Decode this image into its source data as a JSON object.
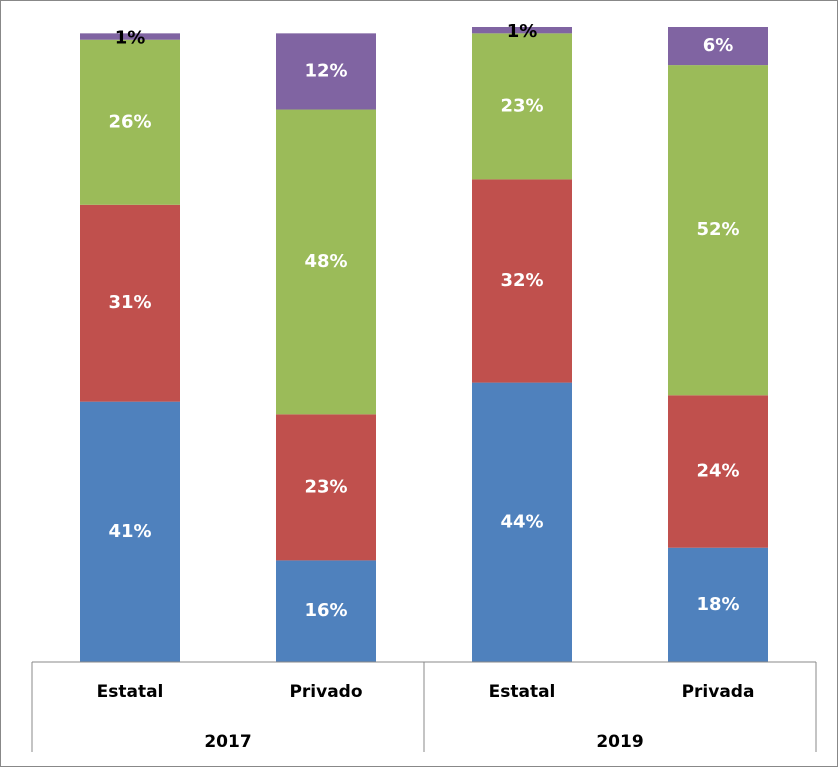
{
  "chart_data": {
    "type": "stacked-bar",
    "categories": [
      "Estatal",
      "Privado",
      "Estatal",
      "Privada"
    ],
    "groups": [
      "2017",
      "2019"
    ],
    "series": [
      {
        "color": "#4f81bd",
        "values": [
          41,
          16,
          44,
          18
        ],
        "value_labels": [
          "41%",
          "16%",
          "44%",
          "18%"
        ]
      },
      {
        "color": "#c0504d",
        "values": [
          31,
          23,
          32,
          24
        ],
        "value_labels": [
          "31%",
          "23%",
          "32%",
          "24%"
        ]
      },
      {
        "color": "#9bbb59",
        "values": [
          26,
          48,
          23,
          52
        ],
        "value_labels": [
          "26%",
          "48%",
          "23%",
          "52%"
        ]
      },
      {
        "color": "#8064a2",
        "values": [
          1,
          12,
          1,
          6
        ],
        "value_labels": [
          "1%",
          "12%",
          "1%",
          "6%"
        ]
      }
    ],
    "ylim": [
      0,
      100
    ]
  }
}
